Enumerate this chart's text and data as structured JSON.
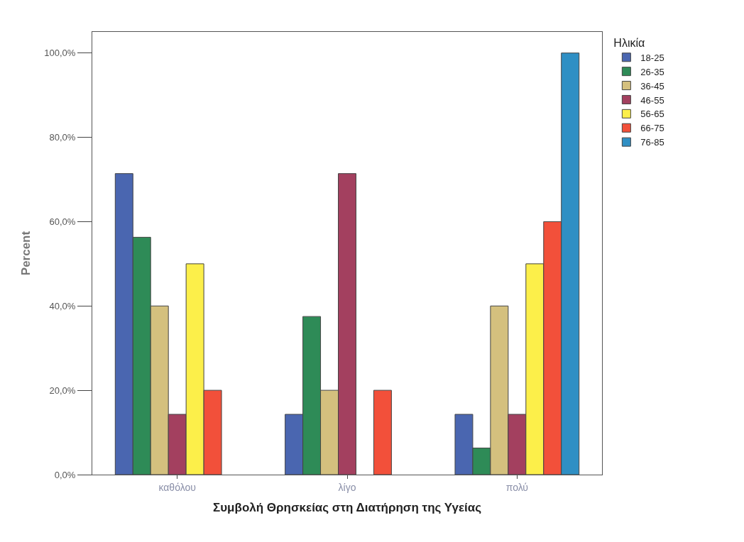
{
  "chart_data": {
    "type": "bar",
    "xlabel": "Συμβολή Θρησκείας στη Διατήρηση της Υγείας",
    "ylabel": "Percent",
    "legend_title": "Ηλικία",
    "legend": "top right",
    "categories": [
      "καθόλου",
      "λίγο",
      "πολύ"
    ],
    "ylim": [
      0,
      105
    ],
    "yticks": [
      {
        "value": 0,
        "label": "0,0%"
      },
      {
        "value": 20,
        "label": "20,0%"
      },
      {
        "value": 40,
        "label": "40,0%"
      },
      {
        "value": 60,
        "label": "60,0%"
      },
      {
        "value": 80,
        "label": "80,0%"
      },
      {
        "value": 100,
        "label": "100,0%"
      }
    ],
    "series": [
      {
        "name": "18-25",
        "color": "#4a66b0",
        "values": [
          71.4,
          14.3,
          14.3
        ]
      },
      {
        "name": "26-35",
        "color": "#2e8b57",
        "values": [
          56.3,
          37.5,
          6.3
        ]
      },
      {
        "name": "36-45",
        "color": "#d4c07e",
        "values": [
          40,
          20,
          40
        ]
      },
      {
        "name": "46-55",
        "color": "#a3405f",
        "values": [
          14.3,
          71.4,
          14.3
        ]
      },
      {
        "name": "56-65",
        "color": "#fcef4a",
        "values": [
          50,
          null,
          50
        ]
      },
      {
        "name": "66-75",
        "color": "#f2503a",
        "values": [
          20,
          20,
          60
        ]
      },
      {
        "name": "76-85",
        "color": "#2f8fc4",
        "values": [
          null,
          null,
          100
        ]
      }
    ]
  }
}
